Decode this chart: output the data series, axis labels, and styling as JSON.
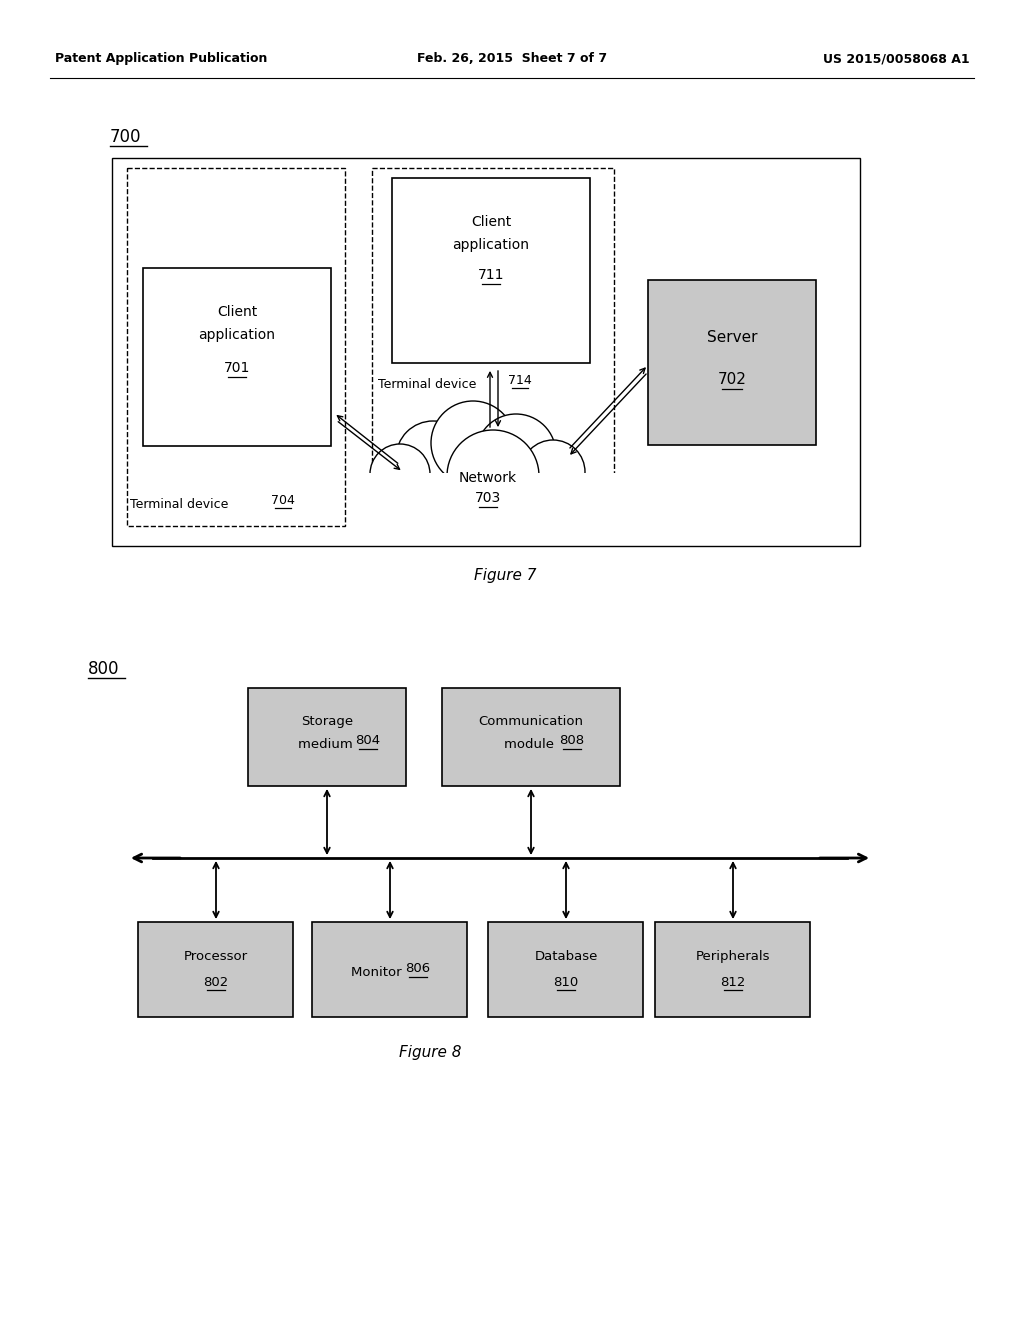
{
  "bg_color": "#ffffff",
  "header_left": "Patent Application Publication",
  "header_center": "Feb. 26, 2015  Sheet 7 of 7",
  "header_right": "US 2015/0058068 A1",
  "fig7_label": "700",
  "fig7_caption": "Figure 7",
  "fig8_label": "800",
  "fig8_caption": "Figure 8",
  "gray_fill": "#c8c8c8",
  "white_fill": "#ffffff",
  "text_color": "#000000",
  "line_color": "#000000"
}
